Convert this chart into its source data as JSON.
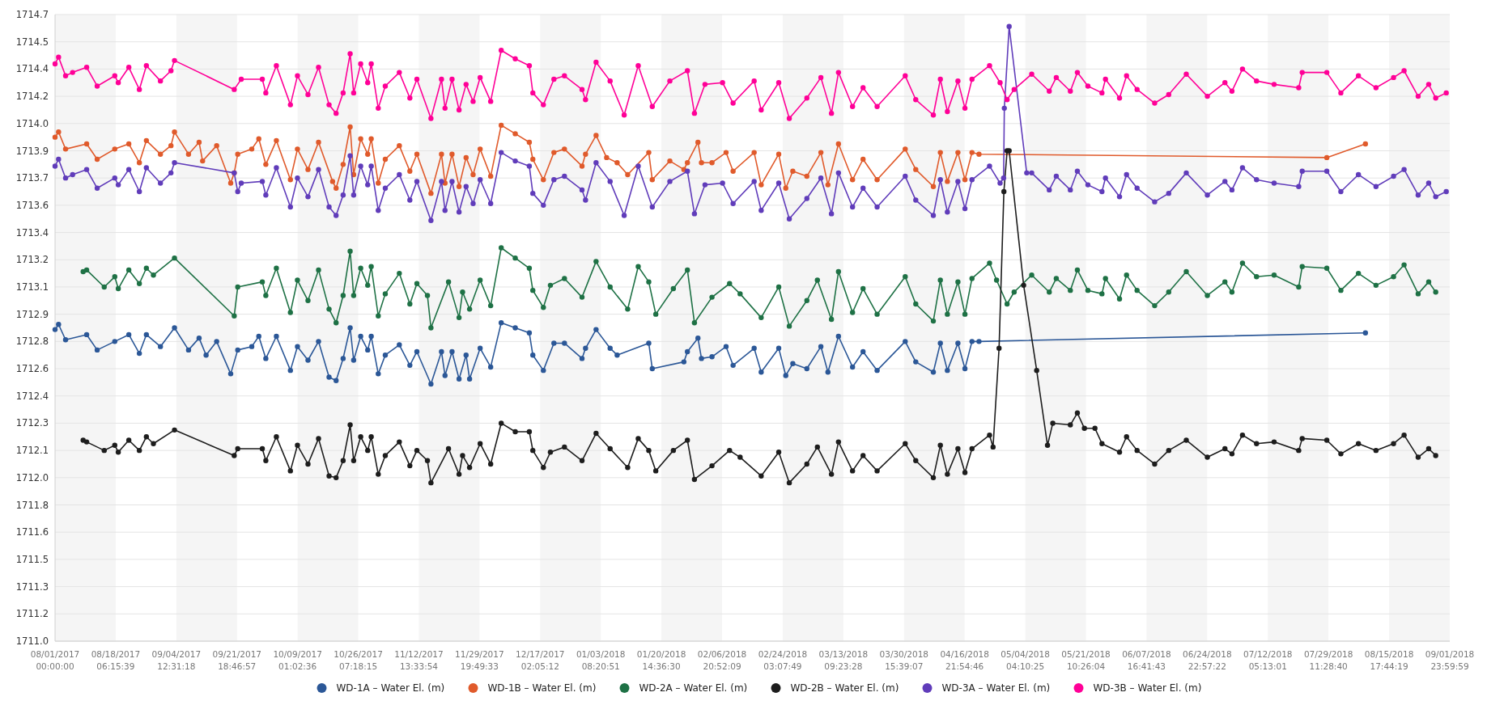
{
  "chart_data": {
    "type": "line",
    "xlim": [
      "2017-08-01T00:00",
      "2018-09-01T23:59"
    ],
    "ylim": [
      1711.0,
      1714.68
    ],
    "xticks": [
      {
        "value": "2017-08-01T00:00",
        "label": "08/01/2017\n00:00:00"
      },
      {
        "value": "2017-08-18T06:15",
        "label": "08/18/2017\n06:15:39"
      },
      {
        "value": "2017-09-04T12:31",
        "label": "09/04/2017\n12:31:18"
      },
      {
        "value": "2017-09-21T18:46",
        "label": "09/21/2017\n18:46:57"
      },
      {
        "value": "2017-10-09T01:02",
        "label": "10/09/2017\n01:02:36"
      },
      {
        "value": "2017-10-26T07:18",
        "label": "10/26/2017\n07:18:15"
      },
      {
        "value": "2017-11-12T13:33",
        "label": "11/12/2017\n13:33:54"
      },
      {
        "value": "2017-11-29T19:49",
        "label": "11/29/2017\n19:49:33"
      },
      {
        "value": "2017-12-17T02:05",
        "label": "12/17/2017\n02:05:12"
      },
      {
        "value": "2018-01-03T08:20",
        "label": "01/03/2018\n08:20:51"
      },
      {
        "value": "2018-01-20T14:36",
        "label": "01/20/2018\n14:36:30"
      },
      {
        "value": "2018-02-06T20:52",
        "label": "02/06/2018\n20:52:09"
      },
      {
        "value": "2018-02-24T03:07",
        "label": "02/24/2018\n03:07:49"
      },
      {
        "value": "2018-03-13T09:23",
        "label": "03/13/2018\n09:23:28"
      },
      {
        "value": "2018-03-30T15:39",
        "label": "03/30/2018\n15:39:07"
      },
      {
        "value": "2018-04-16T21:54",
        "label": "04/16/2018\n21:54:46"
      },
      {
        "value": "2018-05-04T04:10",
        "label": "05/04/2018\n04:10:25"
      },
      {
        "value": "2018-05-21T10:26",
        "label": "05/21/2018\n10:26:04"
      },
      {
        "value": "2018-06-07T16:41",
        "label": "06/07/2018\n16:41:43"
      },
      {
        "value": "2018-06-24T22:57",
        "label": "06/24/2018\n22:57:22"
      },
      {
        "value": "2018-07-12T05:13",
        "label": "07/12/2018\n05:13:01"
      },
      {
        "value": "2018-07-29T11:28",
        "label": "07/29/2018\n11:28:40"
      },
      {
        "value": "2018-08-15T17:44",
        "label": "08/15/2018\n17:44:19"
      },
      {
        "value": "2018-09-01T23:59",
        "label": "09/01/2018\n23:59:59"
      }
    ],
    "yticks": [
      {
        "value": 1711.0,
        "label": "1711.0"
      },
      {
        "value": 1711.16,
        "label": "1711.2"
      },
      {
        "value": 1711.32,
        "label": "1711.3"
      },
      {
        "value": 1711.48,
        "label": "1711.5"
      },
      {
        "value": 1711.64,
        "label": "1711.6"
      },
      {
        "value": 1711.8,
        "label": "1711.8"
      },
      {
        "value": 1711.96,
        "label": "1712.0"
      },
      {
        "value": 1712.12,
        "label": "1712.1"
      },
      {
        "value": 1712.28,
        "label": "1712.3"
      },
      {
        "value": 1712.44,
        "label": "1712.4"
      },
      {
        "value": 1712.6,
        "label": "1712.6"
      },
      {
        "value": 1712.76,
        "label": "1712.8"
      },
      {
        "value": 1712.92,
        "label": "1712.9"
      },
      {
        "value": 1713.08,
        "label": "1713.1"
      },
      {
        "value": 1713.24,
        "label": "1713.2"
      },
      {
        "value": 1713.4,
        "label": "1713.4"
      },
      {
        "value": 1713.56,
        "label": "1713.6"
      },
      {
        "value": 1713.72,
        "label": "1713.7"
      },
      {
        "value": 1713.88,
        "label": "1713.9"
      },
      {
        "value": 1714.04,
        "label": "1714.0"
      },
      {
        "value": 1714.2,
        "label": "1714.2"
      },
      {
        "value": 1714.36,
        "label": "1714.4"
      },
      {
        "value": 1714.52,
        "label": "1714.5"
      },
      {
        "value": 1714.68,
        "label": "1714.7"
      }
    ],
    "grid": "y",
    "legend": "bottom",
    "marker": "circle",
    "bands": [
      {
        "axis": "x",
        "from": "2017-08-01T00:00",
        "to": "2017-08-18T06:15",
        "color": "#f5f5f5"
      },
      {
        "axis": "x",
        "from": "2017-09-04T12:31",
        "to": "2017-09-21T18:46",
        "color": "#f5f5f5"
      },
      {
        "axis": "x",
        "from": "2017-10-09T01:02",
        "to": "2017-10-26T07:18",
        "color": "#f5f5f5"
      },
      {
        "axis": "x",
        "from": "2017-11-12T13:33",
        "to": "2017-11-29T19:49",
        "color": "#f5f5f5"
      },
      {
        "axis": "x",
        "from": "2017-12-17T02:05",
        "to": "2018-01-03T08:20",
        "color": "#f5f5f5"
      },
      {
        "axis": "x",
        "from": "2018-01-20T14:36",
        "to": "2018-02-06T20:52",
        "color": "#f5f5f5"
      },
      {
        "axis": "x",
        "from": "2018-02-24T03:07",
        "to": "2018-03-13T09:23",
        "color": "#f5f5f5"
      },
      {
        "axis": "x",
        "from": "2018-03-30T15:39",
        "to": "2018-04-16T21:54",
        "color": "#f5f5f5"
      },
      {
        "axis": "x",
        "from": "2018-05-04T04:10",
        "to": "2018-05-21T10:26",
        "color": "#f5f5f5"
      },
      {
        "axis": "x",
        "from": "2018-06-07T16:41",
        "to": "2018-06-24T22:57",
        "color": "#f5f5f5"
      },
      {
        "axis": "x",
        "from": "2018-07-12T05:13",
        "to": "2018-07-29T11:28",
        "color": "#f5f5f5"
      },
      {
        "axis": "x",
        "from": "2018-08-15T17:44",
        "to": "2018-09-01T23:59",
        "color": "#f5f5f5"
      }
    ],
    "series": [
      {
        "name": "WD-1A – Water El. (m)",
        "color": "#2b5797",
        "x": [
          "2017-08-01",
          "2017-08-02",
          "2017-08-04",
          "2017-08-10",
          "2017-08-13",
          "2017-08-18",
          "2017-08-22",
          "2017-08-25",
          "2017-08-27",
          "2017-08-31",
          "2017-09-04",
          "2017-09-08",
          "2017-09-11",
          "2017-09-13",
          "2017-09-16",
          "2017-09-20",
          "2017-09-22",
          "2017-09-26",
          "2017-09-28",
          "2017-09-30",
          "2017-10-03",
          "2017-10-07",
          "2017-10-09",
          "2017-10-12",
          "2017-10-15",
          "2017-10-18",
          "2017-10-20",
          "2017-10-22",
          "2017-10-24",
          "2017-10-25",
          "2017-10-27",
          "2017-10-29",
          "2017-10-30",
          "2017-11-01",
          "2017-11-03",
          "2017-11-07",
          "2017-11-10",
          "2017-11-12",
          "2017-11-16",
          "2017-11-19",
          "2017-11-20",
          "2017-11-22",
          "2017-11-24",
          "2017-11-26",
          "2017-11-27",
          "2017-11-30",
          "2017-12-03",
          "2017-12-06",
          "2017-12-10",
          "2017-12-14",
          "2017-12-15",
          "2017-12-18",
          "2017-12-21",
          "2017-12-24",
          "2017-12-29",
          "2017-12-30",
          "2018-01-02",
          "2018-01-06",
          "2018-01-08",
          "2018-01-17",
          "2018-01-18",
          "2018-01-27",
          "2018-01-28",
          "2018-01-31",
          "2018-02-01",
          "2018-02-04",
          "2018-02-08",
          "2018-02-10",
          "2018-02-16",
          "2018-02-18",
          "2018-02-23",
          "2018-02-25",
          "2018-02-27",
          "2018-03-03",
          "2018-03-07",
          "2018-03-09",
          "2018-03-12",
          "2018-03-16",
          "2018-03-19",
          "2018-03-23",
          "2018-03-31",
          "2018-04-03",
          "2018-04-08",
          "2018-04-10",
          "2018-04-12",
          "2018-04-15",
          "2018-04-17",
          "2018-04-19",
          "2018-04-21",
          "2018-08-09"
        ],
        "values": [
          1712.83,
          1712.86,
          1712.77,
          1712.8,
          1712.71,
          1712.76,
          1712.8,
          1712.69,
          1712.8,
          1712.73,
          1712.84,
          1712.71,
          1712.78,
          1712.68,
          1712.76,
          1712.57,
          1712.71,
          1712.73,
          1712.79,
          1712.66,
          1712.79,
          1712.59,
          1712.73,
          1712.65,
          1712.76,
          1712.55,
          1712.53,
          1712.66,
          1712.84,
          1712.65,
          1712.79,
          1712.71,
          1712.79,
          1712.57,
          1712.68,
          1712.74,
          1712.62,
          1712.7,
          1712.51,
          1712.7,
          1712.56,
          1712.7,
          1712.54,
          1712.68,
          1712.54,
          1712.72,
          1712.61,
          1712.87,
          1712.84,
          1712.81,
          1712.68,
          1712.59,
          1712.75,
          1712.75,
          1712.66,
          1712.72,
          1712.83,
          1712.72,
          1712.68,
          1712.75,
          1712.6,
          1712.64,
          1712.7,
          1712.78,
          1712.66,
          1712.67,
          1712.73,
          1712.62,
          1712.72,
          1712.58,
          1712.72,
          1712.56,
          1712.63,
          1712.6,
          1712.73,
          1712.58,
          1712.79,
          1712.61,
          1712.7,
          1712.59,
          1712.76,
          1712.64,
          1712.58,
          1712.75,
          1712.59,
          1712.75,
          1712.6,
          1712.76,
          1712.76,
          1712.81
        ]
      },
      {
        "name": "WD-1B – Water El. (m)",
        "color": "#e05a2b",
        "x": [
          "2017-08-01",
          "2017-08-02",
          "2017-08-04",
          "2017-08-10",
          "2017-08-13",
          "2017-08-18",
          "2017-08-22",
          "2017-08-25",
          "2017-08-27",
          "2017-08-31",
          "2017-09-03",
          "2017-09-04",
          "2017-09-08",
          "2017-09-11",
          "2017-09-12",
          "2017-09-16",
          "2017-09-20",
          "2017-09-21",
          "2017-09-22",
          "2017-09-26",
          "2017-09-28",
          "2017-09-30",
          "2017-10-03",
          "2017-10-07",
          "2017-10-09",
          "2017-10-12",
          "2017-10-15",
          "2017-10-19",
          "2017-10-20",
          "2017-10-22",
          "2017-10-24",
          "2017-10-25",
          "2017-10-27",
          "2017-10-29",
          "2017-10-30",
          "2017-11-01",
          "2017-11-03",
          "2017-11-07",
          "2017-11-10",
          "2017-11-12",
          "2017-11-16",
          "2017-11-19",
          "2017-11-20",
          "2017-11-22",
          "2017-11-24",
          "2017-11-26",
          "2017-11-28",
          "2017-11-30",
          "2017-12-03",
          "2017-12-06",
          "2017-12-10",
          "2017-12-14",
          "2017-12-15",
          "2017-12-18",
          "2017-12-21",
          "2017-12-24",
          "2017-12-29",
          "2017-12-30",
          "2018-01-02",
          "2018-01-05",
          "2018-01-08",
          "2018-01-11",
          "2018-01-17",
          "2018-01-18",
          "2018-01-23",
          "2018-01-27",
          "2018-01-28",
          "2018-01-31",
          "2018-02-01",
          "2018-02-04",
          "2018-02-08",
          "2018-02-10",
          "2018-02-16",
          "2018-02-18",
          "2018-02-23",
          "2018-02-25",
          "2018-02-27",
          "2018-03-03",
          "2018-03-07",
          "2018-03-09",
          "2018-03-12",
          "2018-03-16",
          "2018-03-19",
          "2018-03-23",
          "2018-03-31",
          "2018-04-03",
          "2018-04-08",
          "2018-04-10",
          "2018-04-12",
          "2018-04-15",
          "2018-04-17",
          "2018-04-19",
          "2018-04-21",
          "2018-07-29",
          "2018-08-09"
        ],
        "values": [
          1713.96,
          1713.99,
          1713.89,
          1713.92,
          1713.83,
          1713.89,
          1713.92,
          1713.81,
          1713.94,
          1713.86,
          1713.91,
          1713.99,
          1713.86,
          1713.93,
          1713.82,
          1713.91,
          1713.69,
          1713.75,
          1713.86,
          1713.89,
          1713.95,
          1713.8,
          1713.94,
          1713.71,
          1713.89,
          1713.77,
          1713.93,
          1713.7,
          1713.66,
          1713.8,
          1714.02,
          1713.74,
          1713.95,
          1713.86,
          1713.95,
          1713.69,
          1713.83,
          1713.91,
          1713.76,
          1713.86,
          1713.63,
          1713.86,
          1713.69,
          1713.86,
          1713.67,
          1713.84,
          1713.74,
          1713.89,
          1713.73,
          1714.03,
          1713.98,
          1713.93,
          1713.83,
          1713.71,
          1713.87,
          1713.89,
          1713.79,
          1713.86,
          1713.97,
          1713.84,
          1713.81,
          1713.74,
          1713.87,
          1713.71,
          1713.82,
          1713.77,
          1713.81,
          1713.93,
          1713.81,
          1713.81,
          1713.87,
          1713.76,
          1713.87,
          1713.68,
          1713.86,
          1713.66,
          1713.76,
          1713.73,
          1713.87,
          1713.68,
          1713.92,
          1713.71,
          1713.83,
          1713.71,
          1713.89,
          1713.77,
          1713.67,
          1713.87,
          1713.7,
          1713.87,
          1713.71,
          1713.87,
          1713.86,
          1713.84,
          1713.92
        ]
      },
      {
        "name": "WD-2A – Water El. (m)",
        "color": "#1e7145",
        "x": [
          "2017-08-09",
          "2017-08-10",
          "2017-08-15",
          "2017-08-18",
          "2017-08-19",
          "2017-08-22",
          "2017-08-25",
          "2017-08-27",
          "2017-08-29",
          "2017-09-04",
          "2017-09-21",
          "2017-09-22",
          "2017-09-29",
          "2017-09-30",
          "2017-10-03",
          "2017-10-07",
          "2017-10-09",
          "2017-10-12",
          "2017-10-15",
          "2017-10-18",
          "2017-10-20",
          "2017-10-22",
          "2017-10-24",
          "2017-10-25",
          "2017-10-27",
          "2017-10-29",
          "2017-10-30",
          "2017-11-01",
          "2017-11-03",
          "2017-11-07",
          "2017-11-10",
          "2017-11-12",
          "2017-11-15",
          "2017-11-16",
          "2017-11-21",
          "2017-11-24",
          "2017-11-25",
          "2017-11-27",
          "2017-11-30",
          "2017-12-03",
          "2017-12-06",
          "2017-12-10",
          "2017-12-14",
          "2017-12-15",
          "2017-12-18",
          "2017-12-20",
          "2017-12-24",
          "2017-12-29",
          "2018-01-02",
          "2018-01-06",
          "2018-01-11",
          "2018-01-14",
          "2018-01-17",
          "2018-01-19",
          "2018-01-24",
          "2018-01-28",
          "2018-01-30",
          "2018-02-04",
          "2018-02-09",
          "2018-02-12",
          "2018-02-18",
          "2018-02-23",
          "2018-02-26",
          "2018-03-03",
          "2018-03-06",
          "2018-03-10",
          "2018-03-12",
          "2018-03-16",
          "2018-03-19",
          "2018-03-23",
          "2018-03-31",
          "2018-04-03",
          "2018-04-08",
          "2018-04-10",
          "2018-04-12",
          "2018-04-15",
          "2018-04-17",
          "2018-04-19",
          "2018-04-24",
          "2018-04-26",
          "2018-04-29",
          "2018-05-01",
          "2018-05-06",
          "2018-05-11",
          "2018-05-13",
          "2018-05-17",
          "2018-05-19",
          "2018-05-22",
          "2018-05-26",
          "2018-05-27",
          "2018-05-31",
          "2018-06-02",
          "2018-06-05",
          "2018-06-10",
          "2018-06-14",
          "2018-06-19",
          "2018-06-25",
          "2018-06-30",
          "2018-07-02",
          "2018-07-05",
          "2018-07-09",
          "2018-07-14",
          "2018-07-21",
          "2018-07-22",
          "2018-07-29",
          "2018-08-02",
          "2018-08-07",
          "2018-08-12",
          "2018-08-17",
          "2018-08-20",
          "2018-08-24",
          "2018-08-27",
          "2018-08-29"
        ],
        "values": [
          1713.17,
          1713.18,
          1713.08,
          1713.14,
          1713.07,
          1713.18,
          1713.1,
          1713.19,
          1713.15,
          1713.25,
          1712.91,
          1713.08,
          1713.11,
          1713.03,
          1713.19,
          1712.93,
          1713.12,
          1713.0,
          1713.18,
          1712.95,
          1712.87,
          1713.03,
          1713.29,
          1713.03,
          1713.19,
          1713.09,
          1713.2,
          1712.91,
          1713.04,
          1713.16,
          1712.98,
          1713.1,
          1713.03,
          1712.84,
          1713.11,
          1712.9,
          1713.05,
          1712.95,
          1713.12,
          1712.97,
          1713.31,
          1713.25,
          1713.19,
          1713.06,
          1712.96,
          1713.09,
          1713.13,
          1713.02,
          1713.23,
          1713.08,
          1712.95,
          1713.2,
          1713.11,
          1712.92,
          1713.07,
          1713.18,
          1712.87,
          1713.02,
          1713.1,
          1713.04,
          1712.9,
          1713.08,
          1712.85,
          1713.0,
          1713.12,
          1712.89,
          1713.17,
          1712.93,
          1713.07,
          1712.92,
          1713.14,
          1712.98,
          1712.88,
          1713.12,
          1712.92,
          1713.11,
          1712.92,
          1713.13,
          1713.22,
          1713.12,
          1712.98,
          1713.05,
          1713.15,
          1713.05,
          1713.13,
          1713.06,
          1713.18,
          1713.06,
          1713.04,
          1713.13,
          1713.01,
          1713.15,
          1713.06,
          1712.97,
          1713.05,
          1713.17,
          1713.03,
          1713.11,
          1713.05,
          1713.22,
          1713.14,
          1713.15,
          1713.08,
          1713.2,
          1713.19,
          1713.06,
          1713.16,
          1713.09,
          1713.14,
          1713.21,
          1713.04,
          1713.11,
          1713.05
        ]
      },
      {
        "name": "WD-2B – Water El. (m)",
        "color": "#1d1d1d",
        "x": [
          "2017-08-09",
          "2017-08-10",
          "2017-08-15",
          "2017-08-18",
          "2017-08-19",
          "2017-08-22",
          "2017-08-25",
          "2017-08-27",
          "2017-08-29",
          "2017-09-04",
          "2017-09-21",
          "2017-09-22",
          "2017-09-29",
          "2017-09-30",
          "2017-10-03",
          "2017-10-07",
          "2017-10-09",
          "2017-10-12",
          "2017-10-15",
          "2017-10-18",
          "2017-10-20",
          "2017-10-22",
          "2017-10-24",
          "2017-10-25",
          "2017-10-27",
          "2017-10-29",
          "2017-10-30",
          "2017-11-01",
          "2017-11-03",
          "2017-11-07",
          "2017-11-10",
          "2017-11-12",
          "2017-11-15",
          "2017-11-16",
          "2017-11-21",
          "2017-11-24",
          "2017-11-25",
          "2017-11-27",
          "2017-11-30",
          "2017-12-03",
          "2017-12-06",
          "2017-12-10",
          "2017-12-14",
          "2017-12-15",
          "2017-12-18",
          "2017-12-20",
          "2017-12-24",
          "2017-12-29",
          "2018-01-02",
          "2018-01-06",
          "2018-01-11",
          "2018-01-14",
          "2018-01-17",
          "2018-01-19",
          "2018-01-24",
          "2018-01-28",
          "2018-01-30",
          "2018-02-04",
          "2018-02-09",
          "2018-02-12",
          "2018-02-18",
          "2018-02-23",
          "2018-02-26",
          "2018-03-03",
          "2018-03-06",
          "2018-03-10",
          "2018-03-12",
          "2018-03-16",
          "2018-03-19",
          "2018-03-23",
          "2018-03-31",
          "2018-04-03",
          "2018-04-08",
          "2018-04-10",
          "2018-04-12",
          "2018-04-15",
          "2018-04-17",
          "2018-04-19",
          "2018-04-24",
          "2018-04-25",
          "2018-04-26T17:00",
          "2018-04-28T02:00",
          "2018-04-29T00:00",
          "2018-04-29T14:00",
          "2018-05-03T17:00",
          "2018-05-07T10:00",
          "2018-05-10T12:00",
          "2018-05-12",
          "2018-05-17",
          "2018-05-19",
          "2018-05-21",
          "2018-05-24",
          "2018-05-26",
          "2018-05-31",
          "2018-06-02",
          "2018-06-05",
          "2018-06-10",
          "2018-06-14",
          "2018-06-19",
          "2018-06-25",
          "2018-06-30",
          "2018-07-02",
          "2018-07-05",
          "2018-07-09",
          "2018-07-14",
          "2018-07-21",
          "2018-07-22",
          "2018-07-29",
          "2018-08-02",
          "2018-08-07",
          "2018-08-12",
          "2018-08-17",
          "2018-08-20",
          "2018-08-24",
          "2018-08-27",
          "2018-08-29"
        ],
        "values": [
          1712.18,
          1712.17,
          1712.12,
          1712.15,
          1712.11,
          1712.18,
          1712.12,
          1712.2,
          1712.16,
          1712.24,
          1712.09,
          1712.13,
          1712.13,
          1712.06,
          1712.2,
          1712.0,
          1712.15,
          1712.04,
          1712.19,
          1711.97,
          1711.96,
          1712.06,
          1712.27,
          1712.06,
          1712.2,
          1712.12,
          1712.2,
          1711.98,
          1712.09,
          1712.17,
          1712.03,
          1712.12,
          1712.06,
          1711.93,
          1712.13,
          1711.98,
          1712.09,
          1712.02,
          1712.16,
          1712.04,
          1712.28,
          1712.23,
          1712.23,
          1712.12,
          1712.02,
          1712.11,
          1712.14,
          1712.06,
          1712.22,
          1712.13,
          1712.02,
          1712.19,
          1712.12,
          1712.0,
          1712.12,
          1712.18,
          1711.95,
          1712.03,
          1712.12,
          1712.08,
          1711.97,
          1712.11,
          1711.93,
          1712.04,
          1712.14,
          1711.98,
          1712.17,
          1712.0,
          1712.09,
          1712.0,
          1712.16,
          1712.06,
          1711.96,
          1712.15,
          1711.98,
          1712.13,
          1711.99,
          1712.13,
          1712.21,
          1712.14,
          1712.72,
          1713.64,
          1713.88,
          1713.88,
          1713.09,
          1712.59,
          1712.15,
          1712.28,
          1712.27,
          1712.34,
          1712.25,
          1712.25,
          1712.16,
          1712.11,
          1712.2,
          1712.12,
          1712.04,
          1712.12,
          1712.18,
          1712.08,
          1712.13,
          1712.1,
          1712.21,
          1712.16,
          1712.17,
          1712.12,
          1712.19,
          1712.18,
          1712.1,
          1712.16,
          1712.12,
          1712.16,
          1712.21,
          1712.08,
          1712.13,
          1712.09
        ]
      },
      {
        "name": "WD-3A – Water El. (m)",
        "color": "#603cba",
        "x": [
          "2017-08-01",
          "2017-08-02",
          "2017-08-04",
          "2017-08-06",
          "2017-08-10",
          "2017-08-13",
          "2017-08-18",
          "2017-08-19",
          "2017-08-22",
          "2017-08-25",
          "2017-08-27",
          "2017-08-31",
          "2017-09-03",
          "2017-09-04",
          "2017-09-21",
          "2017-09-22",
          "2017-09-23",
          "2017-09-29",
          "2017-09-30",
          "2017-10-03",
          "2017-10-07",
          "2017-10-09",
          "2017-10-12",
          "2017-10-15",
          "2017-10-18",
          "2017-10-20",
          "2017-10-22",
          "2017-10-24",
          "2017-10-25",
          "2017-10-27",
          "2017-10-29",
          "2017-10-30",
          "2017-11-01",
          "2017-11-03",
          "2017-11-07",
          "2017-11-10",
          "2017-11-12",
          "2017-11-16",
          "2017-11-19",
          "2017-11-20",
          "2017-11-22",
          "2017-11-24",
          "2017-11-26",
          "2017-11-28",
          "2017-11-30",
          "2017-12-03",
          "2017-12-06",
          "2017-12-10",
          "2017-12-14",
          "2017-12-15",
          "2017-12-18",
          "2017-12-21",
          "2017-12-24",
          "2017-12-29",
          "2017-12-30",
          "2018-01-02",
          "2018-01-06",
          "2018-01-10",
          "2018-01-14",
          "2018-01-18",
          "2018-01-23",
          "2018-01-28",
          "2018-01-30",
          "2018-02-02",
          "2018-02-07",
          "2018-02-10",
          "2018-02-16",
          "2018-02-18",
          "2018-02-23",
          "2018-02-26",
          "2018-03-03",
          "2018-03-07",
          "2018-03-10",
          "2018-03-12",
          "2018-03-16",
          "2018-03-19",
          "2018-03-23",
          "2018-03-31",
          "2018-04-03",
          "2018-04-08",
          "2018-04-10",
          "2018-04-12",
          "2018-04-15",
          "2018-04-17",
          "2018-04-19",
          "2018-04-24",
          "2018-04-27",
          "2018-04-28T00:00",
          "2018-04-28T05:00",
          "2018-04-29T14:00",
          "2018-05-04T14:00",
          "2018-05-06",
          "2018-05-11",
          "2018-05-13",
          "2018-05-17",
          "2018-05-19",
          "2018-05-22",
          "2018-05-26",
          "2018-05-27",
          "2018-05-31",
          "2018-06-02",
          "2018-06-05",
          "2018-06-10",
          "2018-06-14",
          "2018-06-19",
          "2018-06-25",
          "2018-06-30",
          "2018-07-02",
          "2018-07-05",
          "2018-07-09",
          "2018-07-14",
          "2018-07-21",
          "2018-07-22",
          "2018-07-29",
          "2018-08-02",
          "2018-08-07",
          "2018-08-12",
          "2018-08-17",
          "2018-08-20",
          "2018-08-24",
          "2018-08-27",
          "2018-08-29",
          "2018-09-01"
        ],
        "values": [
          1713.79,
          1713.83,
          1713.72,
          1713.74,
          1713.77,
          1713.66,
          1713.72,
          1713.68,
          1713.77,
          1713.64,
          1713.78,
          1713.69,
          1713.75,
          1713.81,
          1713.75,
          1713.64,
          1713.69,
          1713.7,
          1713.62,
          1713.78,
          1713.55,
          1713.72,
          1713.61,
          1713.77,
          1713.55,
          1713.5,
          1713.62,
          1713.85,
          1713.62,
          1713.79,
          1713.68,
          1713.79,
          1713.53,
          1713.66,
          1713.74,
          1713.59,
          1713.7,
          1713.47,
          1713.7,
          1713.53,
          1713.7,
          1713.52,
          1713.67,
          1713.57,
          1713.71,
          1713.57,
          1713.87,
          1713.82,
          1713.79,
          1713.63,
          1713.56,
          1713.71,
          1713.73,
          1713.65,
          1713.59,
          1713.81,
          1713.7,
          1713.5,
          1713.79,
          1713.55,
          1713.7,
          1713.76,
          1713.51,
          1713.68,
          1713.69,
          1713.57,
          1713.7,
          1713.53,
          1713.69,
          1713.48,
          1713.6,
          1713.72,
          1713.51,
          1713.75,
          1713.55,
          1713.66,
          1713.55,
          1713.73,
          1713.59,
          1713.5,
          1713.71,
          1713.52,
          1713.7,
          1713.54,
          1713.71,
          1713.79,
          1713.69,
          1713.72,
          1714.13,
          1714.61,
          1713.75,
          1713.75,
          1713.65,
          1713.73,
          1713.65,
          1713.76,
          1713.68,
          1713.64,
          1713.72,
          1713.61,
          1713.74,
          1713.66,
          1713.58,
          1713.63,
          1713.75,
          1713.62,
          1713.7,
          1713.65,
          1713.78,
          1713.71,
          1713.69,
          1713.67,
          1713.76,
          1713.76,
          1713.64,
          1713.74,
          1713.67,
          1713.73,
          1713.77,
          1713.62,
          1713.69,
          1713.61,
          1713.64
        ]
      },
      {
        "name": "WD-3B – Water El. (m)",
        "color": "#ff0097",
        "x": [
          "2017-08-01",
          "2017-08-02",
          "2017-08-04",
          "2017-08-06",
          "2017-08-10",
          "2017-08-13",
          "2017-08-18",
          "2017-08-19",
          "2017-08-22",
          "2017-08-25",
          "2017-08-27",
          "2017-08-31",
          "2017-09-03",
          "2017-09-04",
          "2017-09-21",
          "2017-09-23",
          "2017-09-29",
          "2017-09-30",
          "2017-10-03",
          "2017-10-07",
          "2017-10-09",
          "2017-10-12",
          "2017-10-15",
          "2017-10-18",
          "2017-10-20",
          "2017-10-22",
          "2017-10-24",
          "2017-10-25",
          "2017-10-27",
          "2017-10-29",
          "2017-10-30",
          "2017-11-01",
          "2017-11-03",
          "2017-11-07",
          "2017-11-10",
          "2017-11-12",
          "2017-11-16",
          "2017-11-19",
          "2017-11-20",
          "2017-11-22",
          "2017-11-24",
          "2017-11-26",
          "2017-11-28",
          "2017-11-30",
          "2017-12-03",
          "2017-12-06",
          "2017-12-10",
          "2017-12-14",
          "2017-12-15",
          "2017-12-18",
          "2017-12-21",
          "2017-12-24",
          "2017-12-29",
          "2017-12-30",
          "2018-01-02",
          "2018-01-06",
          "2018-01-10",
          "2018-01-14",
          "2018-01-18",
          "2018-01-23",
          "2018-01-28",
          "2018-01-30",
          "2018-02-02",
          "2018-02-07",
          "2018-02-10",
          "2018-02-16",
          "2018-02-18",
          "2018-02-23",
          "2018-02-26",
          "2018-03-03",
          "2018-03-07",
          "2018-03-10",
          "2018-03-12",
          "2018-03-16",
          "2018-03-19",
          "2018-03-23",
          "2018-03-31",
          "2018-04-03",
          "2018-04-08",
          "2018-04-10",
          "2018-04-12",
          "2018-04-15",
          "2018-04-17",
          "2018-04-19",
          "2018-04-24",
          "2018-04-27",
          "2018-04-29",
          "2018-05-01",
          "2018-05-06",
          "2018-05-11",
          "2018-05-13",
          "2018-05-17",
          "2018-05-19",
          "2018-05-22",
          "2018-05-26",
          "2018-05-27",
          "2018-05-31",
          "2018-06-02",
          "2018-06-05",
          "2018-06-10",
          "2018-06-14",
          "2018-06-19",
          "2018-06-25",
          "2018-06-30",
          "2018-07-02",
          "2018-07-05",
          "2018-07-09",
          "2018-07-14",
          "2018-07-21",
          "2018-07-22",
          "2018-07-29",
          "2018-08-02",
          "2018-08-07",
          "2018-08-12",
          "2018-08-17",
          "2018-08-20",
          "2018-08-24",
          "2018-08-27",
          "2018-08-29",
          "2018-09-01"
        ],
        "values": [
          1714.39,
          1714.43,
          1714.32,
          1714.34,
          1714.37,
          1714.26,
          1714.32,
          1714.28,
          1714.37,
          1714.24,
          1714.38,
          1714.29,
          1714.35,
          1714.41,
          1714.24,
          1714.3,
          1714.3,
          1714.22,
          1714.38,
          1714.15,
          1714.32,
          1714.21,
          1714.37,
          1714.15,
          1714.1,
          1714.22,
          1714.45,
          1714.22,
          1714.39,
          1714.28,
          1714.39,
          1714.13,
          1714.26,
          1714.34,
          1714.19,
          1714.3,
          1714.07,
          1714.3,
          1714.13,
          1714.3,
          1714.12,
          1714.27,
          1714.17,
          1714.31,
          1714.17,
          1714.47,
          1714.42,
          1714.38,
          1714.22,
          1714.15,
          1714.3,
          1714.32,
          1714.24,
          1714.18,
          1714.4,
          1714.29,
          1714.09,
          1714.38,
          1714.14,
          1714.29,
          1714.35,
          1714.1,
          1714.27,
          1714.28,
          1714.16,
          1714.29,
          1714.12,
          1714.28,
          1714.07,
          1714.19,
          1714.31,
          1714.1,
          1714.34,
          1714.14,
          1714.25,
          1714.14,
          1714.32,
          1714.18,
          1714.09,
          1714.3,
          1714.11,
          1714.29,
          1714.13,
          1714.3,
          1714.38,
          1714.28,
          1714.18,
          1714.24,
          1714.33,
          1714.23,
          1714.31,
          1714.23,
          1714.34,
          1714.26,
          1714.22,
          1714.3,
          1714.19,
          1714.32,
          1714.24,
          1714.16,
          1714.21,
          1714.33,
          1714.2,
          1714.28,
          1714.23,
          1714.36,
          1714.29,
          1714.27,
          1714.25,
          1714.34,
          1714.34,
          1714.22,
          1714.32,
          1714.25,
          1714.31,
          1714.35,
          1714.2,
          1714.27,
          1714.19,
          1714.22
        ]
      }
    ]
  }
}
